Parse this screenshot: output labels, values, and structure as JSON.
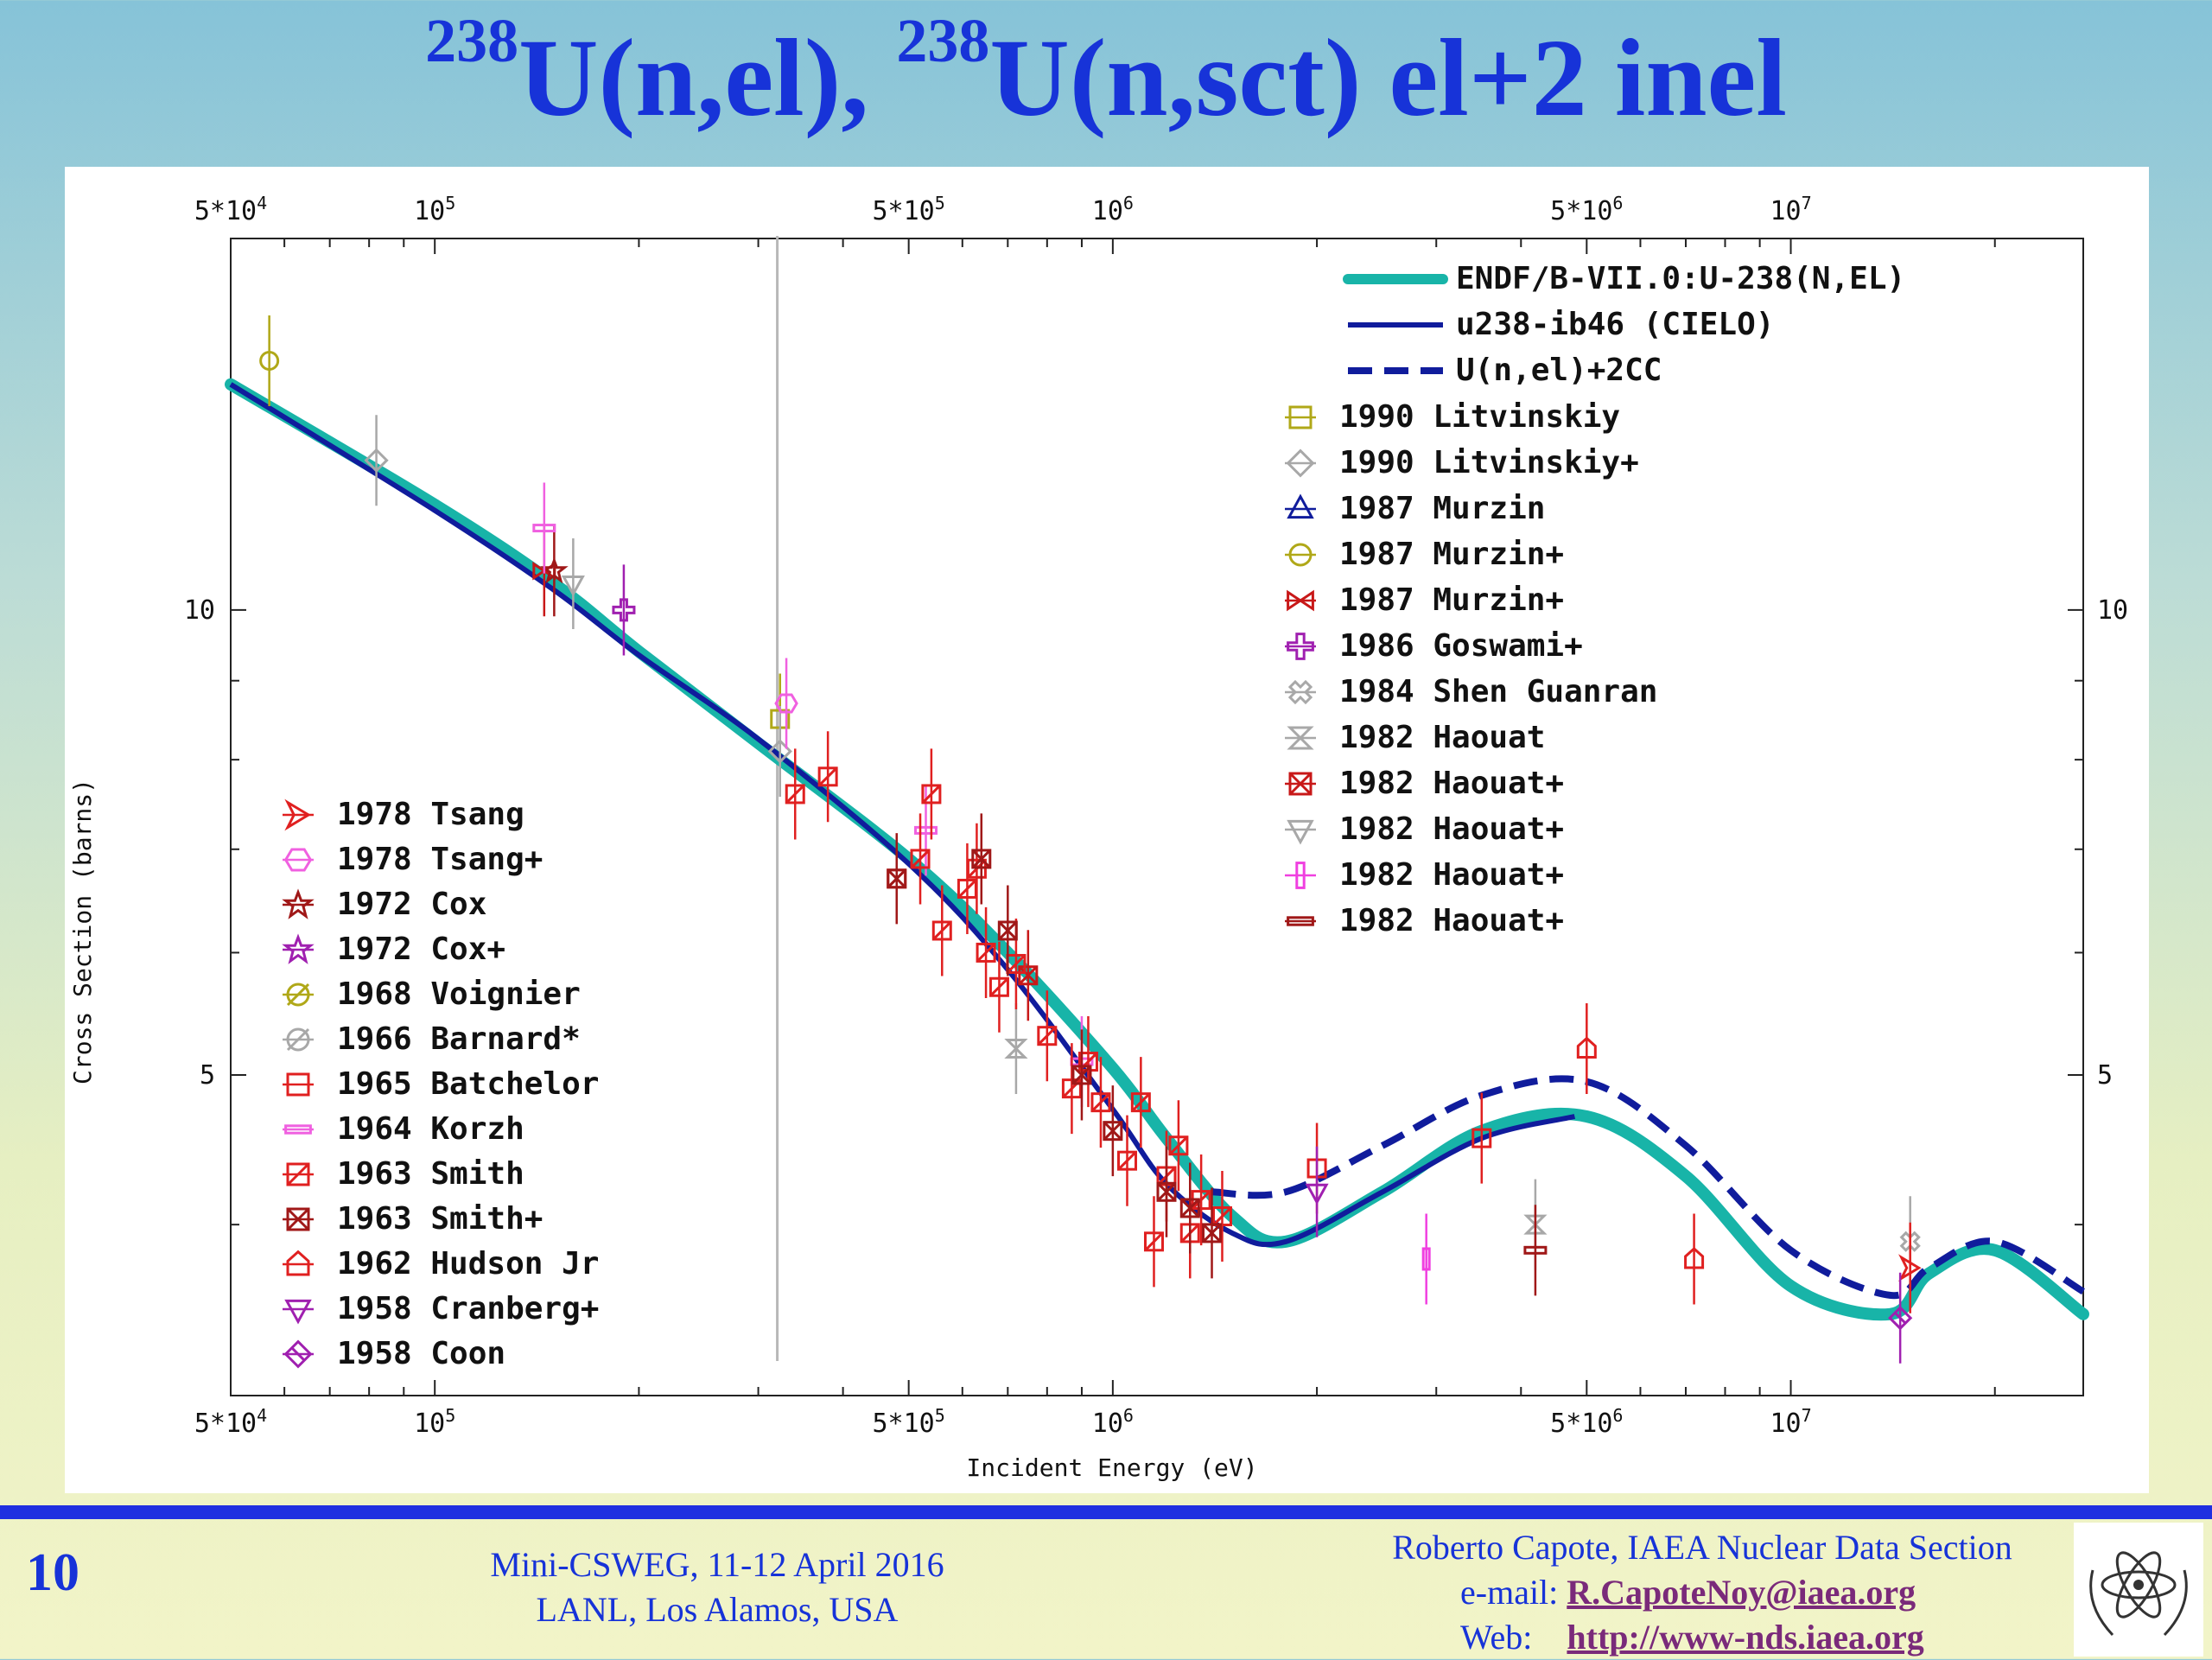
{
  "slide": {
    "title_parts": [
      "238",
      "U(n,el), ",
      "238",
      "U(n,sct) el+2 inel"
    ],
    "number": "10",
    "conference_line1": "Mini-CSWEG, 11-12 April 2016",
    "conference_line2": "LANL, Los Alamos, USA",
    "author": "Roberto Capote, IAEA Nuclear Data Section",
    "email_label": "e-mail:",
    "email": "R.CapoteNoy@iaea.org",
    "web_label": "Web:",
    "web": "http://www-nds.iaea.org"
  },
  "chart_data": {
    "type": "scatter",
    "xlabel": "Incident Energy (eV)",
    "ylabel": "Cross Section (barns)",
    "x_scale": "log",
    "y_scale": "log",
    "xlim": [
      50000,
      27000000
    ],
    "ylim": [
      3.1,
      17.4
    ],
    "x_ticks": [
      {
        "value": 50000,
        "base": "5*10",
        "exp": "4"
      },
      {
        "value": 100000,
        "base": "10",
        "exp": "5"
      },
      {
        "value": 500000,
        "base": "5*10",
        "exp": "5"
      },
      {
        "value": 1000000,
        "base": "10",
        "exp": "6"
      },
      {
        "value": 5000000,
        "base": "5*10",
        "exp": "6"
      },
      {
        "value": 10000000,
        "base": "10",
        "exp": "7"
      }
    ],
    "y_ticks": [
      {
        "value": 10,
        "label": "10"
      },
      {
        "value": 5,
        "label": "5"
      }
    ],
    "reference_line_x": 320000,
    "curves": [
      {
        "name": "ENDF/B-VII.0:U-238(N,EL)",
        "color": "#18b4a8",
        "style": "solid-thick",
        "x": [
          50000,
          100000,
          150000,
          200000,
          300000,
          500000,
          700000,
          1000000,
          1200000,
          1500000,
          1800000,
          2500000,
          3500000,
          5000000,
          7000000,
          10000000,
          14000000,
          16000000,
          20000000,
          27000000
        ],
        "y": [
          14.0,
          11.7,
          10.4,
          9.4,
          8.2,
          6.9,
          6.0,
          5.05,
          4.55,
          4.05,
          3.9,
          4.2,
          4.6,
          4.7,
          4.3,
          3.65,
          3.5,
          3.72,
          3.85,
          3.5
        ]
      },
      {
        "name": "u238-ib46 (CIELO)",
        "color": "#101c9c",
        "style": "solid",
        "x": [
          50000,
          100000,
          150000,
          200000,
          300000,
          500000,
          700000,
          1000000,
          1200000,
          1500000,
          1800000,
          2500000,
          3500000,
          4800000
        ],
        "y": [
          14.0,
          11.6,
          10.3,
          9.35,
          8.25,
          6.85,
          5.85,
          4.75,
          4.25,
          3.95,
          3.9,
          4.2,
          4.55,
          4.7
        ]
      },
      {
        "name": "U(n,el)+2CC",
        "color": "#101c9c",
        "style": "dashed",
        "x": [
          1400000,
          1800000,
          2500000,
          3500000,
          5000000,
          7000000,
          10000000,
          14000000,
          16000000,
          20000000,
          27000000
        ],
        "y": [
          4.2,
          4.2,
          4.5,
          4.85,
          4.95,
          4.5,
          3.85,
          3.6,
          3.75,
          3.9,
          3.62
        ]
      }
    ],
    "series": [
      {
        "name": "1990 Litvinskiy",
        "color": "#b0a818",
        "marker": "square",
        "points": [
          [
            323000,
            8.5
          ]
        ]
      },
      {
        "name": "1990 Litvinskiy+",
        "color": "#a8a8a8",
        "marker": "diamond",
        "points": [
          [
            82000,
            12.5
          ],
          [
            323000,
            8.1
          ]
        ]
      },
      {
        "name": "1987 Murzin",
        "color": "#101c9c",
        "marker": "triangle-up",
        "points": []
      },
      {
        "name": "1987 Murzin+",
        "color": "#b0a818",
        "marker": "circle",
        "points": [
          [
            57000,
            14.5
          ]
        ]
      },
      {
        "name": "1987 Murzin+",
        "color": "#c81818",
        "marker": "bowtie",
        "points": [
          [
            145000,
            10.6
          ]
        ]
      },
      {
        "name": "1986 Goswami+",
        "color": "#a020b0",
        "marker": "plus",
        "points": [
          [
            190000,
            10.0
          ]
        ]
      },
      {
        "name": "1984 Shen Guanran",
        "color": "#a8a8a8",
        "marker": "cross",
        "points": [
          [
            15000000,
            3.9
          ]
        ]
      },
      {
        "name": "1982 Haouat",
        "color": "#a8a8a8",
        "marker": "hourglass",
        "points": [
          [
            720000,
            5.2
          ],
          [
            4200000,
            4.0
          ]
        ]
      },
      {
        "name": "1982 Haouat+",
        "color": "#c81818",
        "marker": "bowtie-box",
        "points": [
          [
            750000,
            5.8
          ]
        ]
      },
      {
        "name": "1982 Haouat+",
        "color": "#a8a8a8",
        "marker": "triangle-down",
        "points": [
          [
            160000,
            10.4
          ]
        ]
      },
      {
        "name": "1982 Haouat+",
        "color": "#f040e0",
        "marker": "vbar",
        "points": [
          [
            2900000,
            3.8
          ]
        ]
      },
      {
        "name": "1982 Haouat+",
        "color": "#a01818",
        "marker": "hbar",
        "points": [
          [
            4200000,
            3.85
          ]
        ]
      },
      {
        "name": "1978 Tsang",
        "color": "#e02020",
        "marker": "flag",
        "points": [
          [
            15000000,
            3.75
          ]
        ]
      },
      {
        "name": "1978 Tsang+",
        "color": "#f060e0",
        "marker": "hexagon",
        "points": [
          [
            330000,
            8.7
          ]
        ]
      },
      {
        "name": "1972 Cox",
        "color": "#a01818",
        "marker": "star",
        "points": [
          [
            150000,
            10.6
          ]
        ]
      },
      {
        "name": "1972 Cox+",
        "color": "#a020b0",
        "marker": "star",
        "points": []
      },
      {
        "name": "1968 Voignier",
        "color": "#b0a818",
        "marker": "circle-slash",
        "points": []
      },
      {
        "name": "1966 Barnard*",
        "color": "#a8a8a8",
        "marker": "circle-slash",
        "points": []
      },
      {
        "name": "1965 Batchelor",
        "color": "#e02020",
        "marker": "square-open",
        "points": [
          [
            2000000,
            4.35
          ],
          [
            3500000,
            4.55
          ]
        ]
      },
      {
        "name": "1964 Korzh",
        "color": "#f060e0",
        "marker": "hbox",
        "points": [
          [
            145000,
            11.3
          ],
          [
            530000,
            7.2
          ],
          [
            900000,
            5.1
          ]
        ]
      },
      {
        "name": "1963 Smith",
        "color": "#e02020",
        "marker": "square-slash",
        "points": [
          [
            340000,
            7.6
          ],
          [
            380000,
            7.8
          ],
          [
            480000,
            6.7
          ],
          [
            540000,
            7.6
          ],
          [
            520000,
            6.9
          ],
          [
            560000,
            6.2
          ],
          [
            610000,
            6.6
          ],
          [
            630000,
            6.8
          ],
          [
            650000,
            6.0
          ],
          [
            680000,
            5.7
          ],
          [
            720000,
            5.9
          ],
          [
            800000,
            5.3
          ],
          [
            870000,
            4.9
          ],
          [
            920000,
            5.1
          ],
          [
            960000,
            4.8
          ],
          [
            1050000,
            4.4
          ],
          [
            1100000,
            4.8
          ],
          [
            1150000,
            3.9
          ],
          [
            1200000,
            4.3
          ],
          [
            1250000,
            4.5
          ],
          [
            1300000,
            3.95
          ],
          [
            1350000,
            4.15
          ],
          [
            1450000,
            4.05
          ]
        ]
      },
      {
        "name": "1963 Smith+",
        "color": "#a01818",
        "marker": "square-x",
        "points": [
          [
            480000,
            6.7
          ],
          [
            640000,
            6.9
          ],
          [
            700000,
            6.2
          ],
          [
            900000,
            5.0
          ],
          [
            1000000,
            4.6
          ],
          [
            1200000,
            4.2
          ],
          [
            1300000,
            4.1
          ],
          [
            1400000,
            3.95
          ]
        ]
      },
      {
        "name": "1962 Hudson Jr",
        "color": "#e02020",
        "marker": "house",
        "points": [
          [
            5000000,
            5.2
          ],
          [
            7200000,
            3.8
          ]
        ]
      },
      {
        "name": "1958 Cranberg+",
        "color": "#a020b0",
        "marker": "triangle-down-open",
        "points": [
          [
            2000000,
            4.2
          ]
        ]
      },
      {
        "name": "1958 Coon",
        "color": "#a020b0",
        "marker": "diamond-x",
        "points": [
          [
            14500000,
            3.48
          ]
        ]
      }
    ]
  }
}
